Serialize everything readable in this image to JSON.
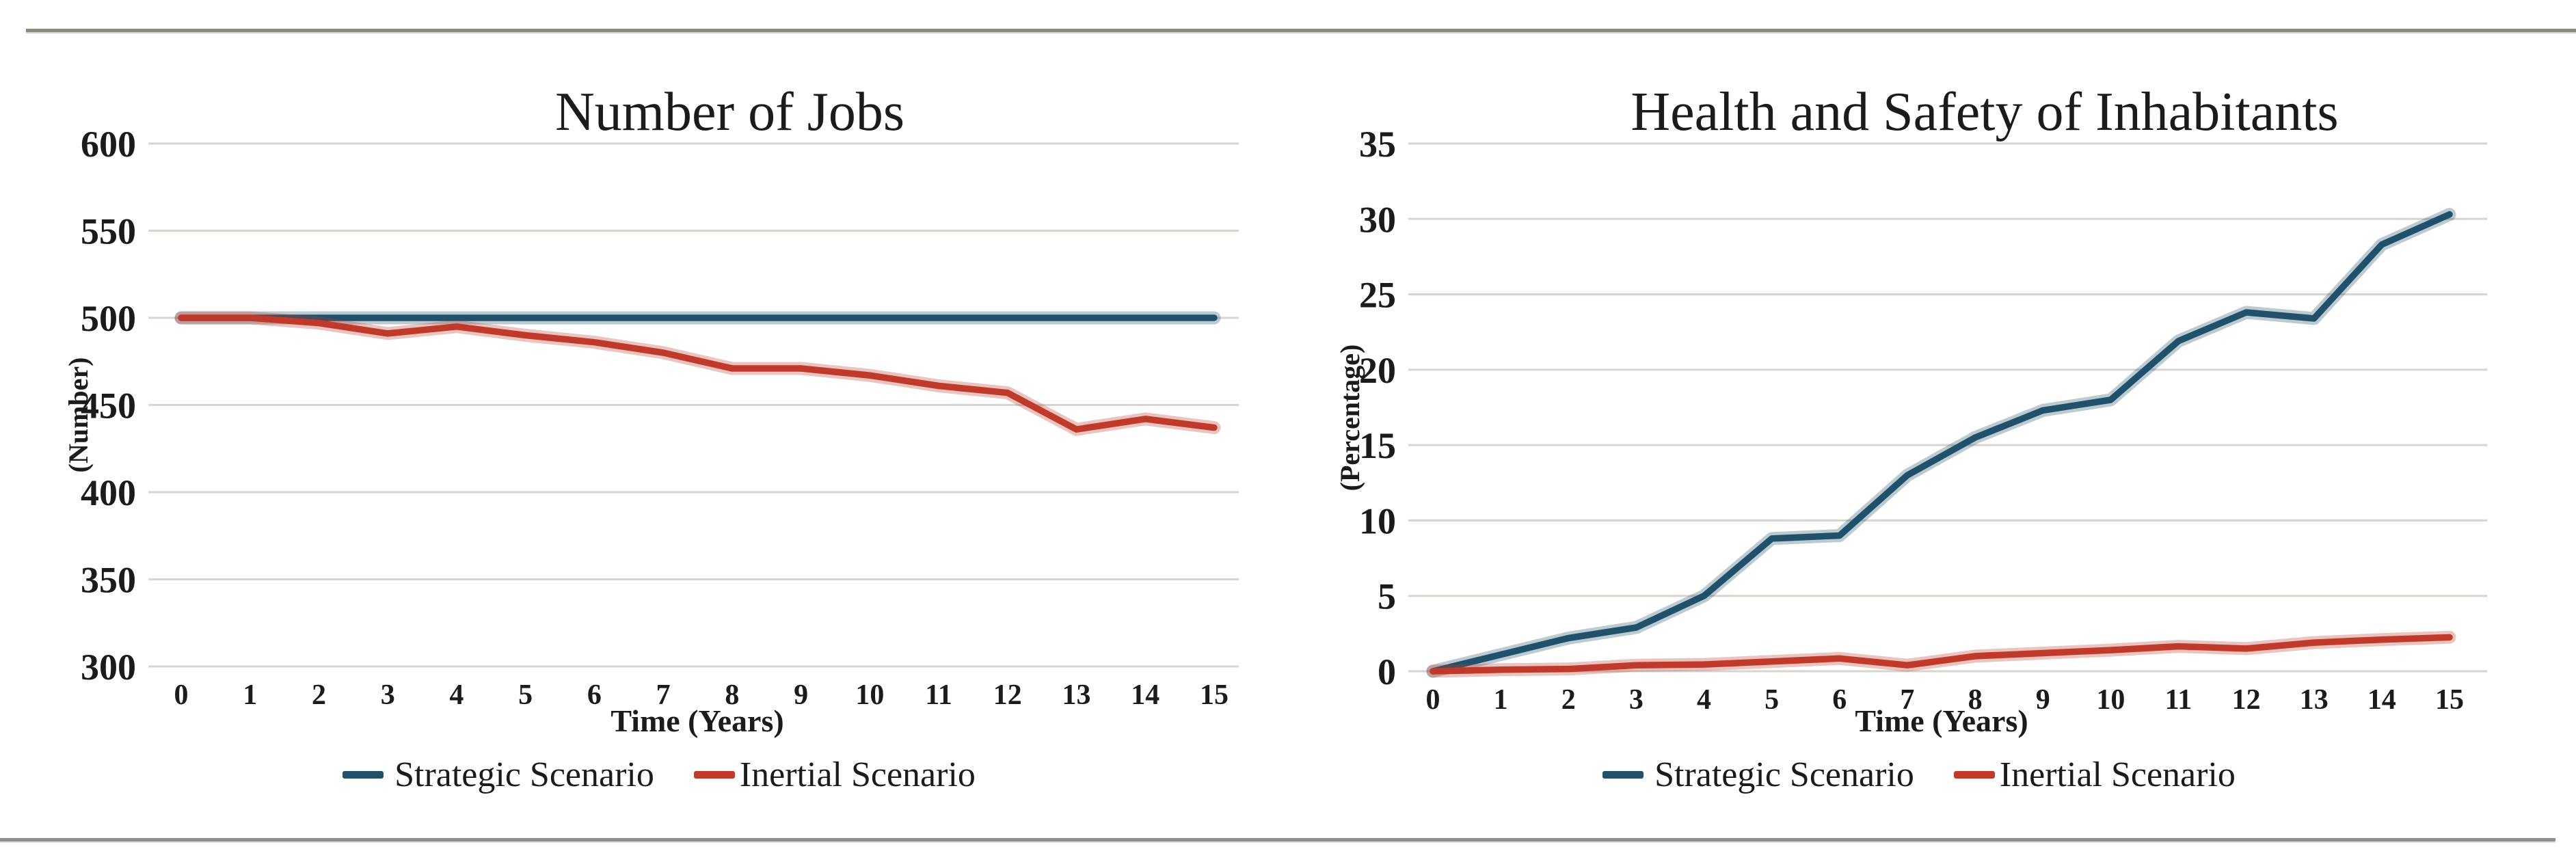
{
  "page": {
    "background": "#ffffff",
    "top_rule_color": "#8a8a80",
    "bottom_rule_color": "#909090",
    "grid_color": "#d6d5d0",
    "text_color": "#1b1b1b"
  },
  "chart_data": [
    {
      "type": "line",
      "title": "Number of Jobs",
      "ylabel": "(Number)",
      "xlabel": "Time (Years)",
      "ylim": [
        300,
        600
      ],
      "yticks": [
        300,
        350,
        400,
        450,
        500,
        550,
        600
      ],
      "x": [
        0,
        1,
        2,
        3,
        4,
        5,
        6,
        7,
        8,
        9,
        10,
        11,
        12,
        13,
        14,
        15
      ],
      "grid": true,
      "legend_position": "bottom",
      "series": [
        {
          "name": "Strategic Scenario",
          "color": "#20506a",
          "values": [
            500,
            500,
            500,
            500,
            500,
            500,
            500,
            500,
            500,
            500,
            500,
            500,
            500,
            500,
            500,
            500
          ]
        },
        {
          "name": "Inertial Scenario",
          "color": "#c03a2b",
          "values": [
            500,
            500,
            497,
            491,
            495,
            490,
            486,
            480,
            471,
            471,
            467,
            461,
            457,
            436,
            442,
            437
          ]
        }
      ]
    },
    {
      "type": "line",
      "title": "Health and Safety of Inhabitants",
      "ylabel": "(Percentage)",
      "xlabel": "Time (Years)",
      "ylim": [
        0,
        35
      ],
      "yticks": [
        0,
        5,
        10,
        15,
        20,
        25,
        30,
        35
      ],
      "x": [
        0,
        1,
        2,
        3,
        4,
        5,
        6,
        7,
        8,
        9,
        10,
        11,
        12,
        13,
        14,
        15
      ],
      "grid": true,
      "legend_position": "bottom",
      "series": [
        {
          "name": "Strategic Scenario",
          "color": "#20506a",
          "values": [
            0,
            1.1,
            2.2,
            2.9,
            5,
            8.8,
            9,
            13,
            15.5,
            17.3,
            18,
            21.9,
            23.8,
            23.4,
            28.3,
            30.3
          ]
        },
        {
          "name": "Inertial Scenario",
          "color": "#c03a2b",
          "values": [
            0,
            0.1,
            0.15,
            0.4,
            0.45,
            0.65,
            0.85,
            0.4,
            1,
            1.2,
            1.4,
            1.65,
            1.5,
            1.9,
            2.1,
            2.25
          ]
        }
      ]
    }
  ]
}
